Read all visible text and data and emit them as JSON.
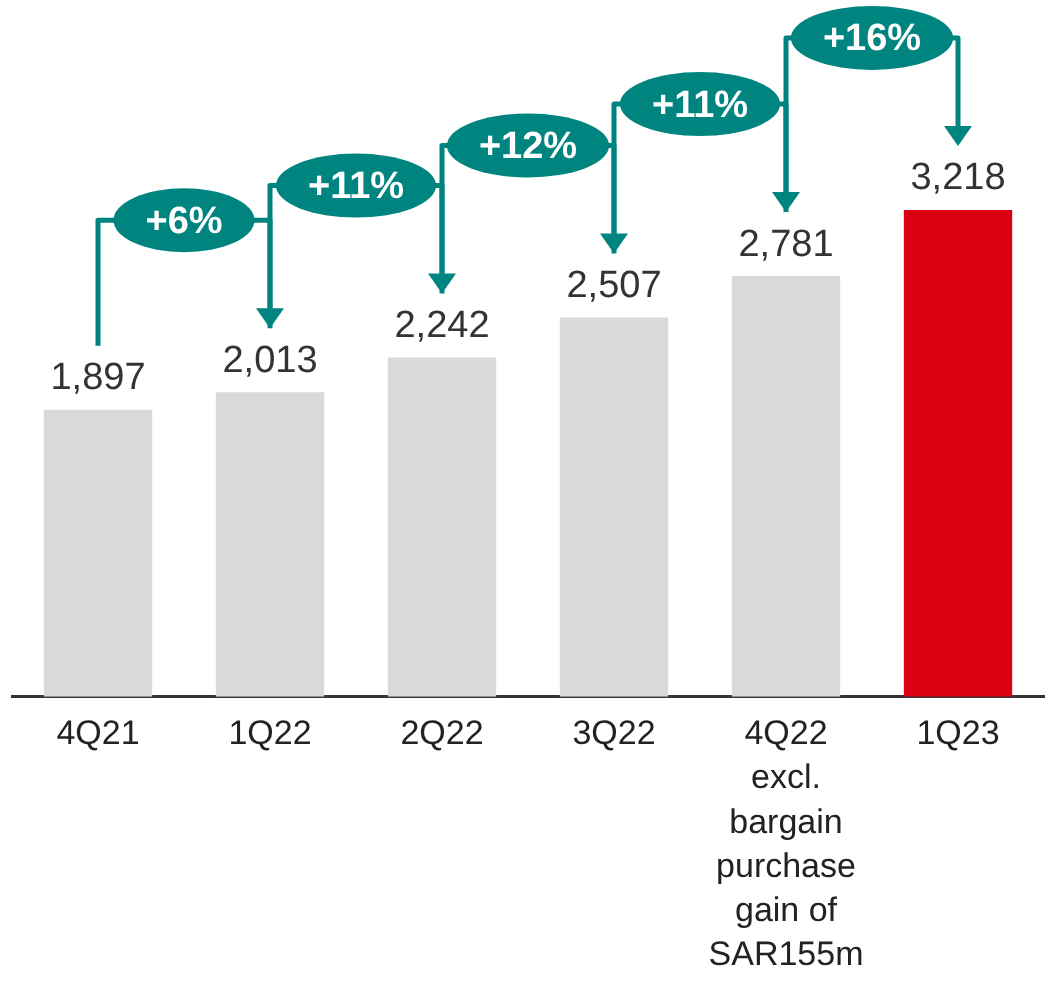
{
  "chart_data": {
    "type": "bar",
    "categories": [
      "4Q21",
      "1Q22",
      "2Q22",
      "3Q22",
      "4Q22\nexcl.\nbargain\npurchase\ngain of\nSAR155m",
      "1Q23"
    ],
    "values": [
      1897,
      2013,
      2242,
      2507,
      2781,
      3218
    ],
    "colors": [
      "#d9d9d9",
      "#d9d9d9",
      "#d9d9d9",
      "#d9d9d9",
      "#d9d9d9",
      "#db0011"
    ],
    "value_labels": [
      "1,897",
      "2,013",
      "2,242",
      "2,507",
      "2,781",
      "3,218"
    ],
    "annotations": [
      "+6%",
      "+11%",
      "+12%",
      "+11%",
      "+16%"
    ],
    "grid": false,
    "legend": false
  }
}
